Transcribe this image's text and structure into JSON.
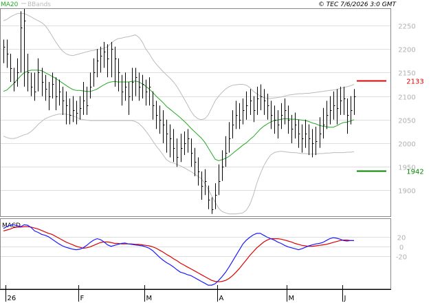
{
  "header": {
    "legend_main": "MA20",
    "legend_bands": "BBands",
    "stamp": "© TEC 7/6/2026 3:0 GMT"
  },
  "colors": {
    "price_bars": "#000000",
    "ma20": "#22aa22",
    "bbands": "#bbbbbb",
    "resistance": "#dd0000",
    "support": "#008800",
    "macd_line": "#1a1aff",
    "signal_line": "#dd0000",
    "grid": "#dddddd",
    "axis_text": "#b0b0b0"
  },
  "chart_data": [
    {
      "type": "ohlc",
      "name": "price",
      "ylim": [
        1845,
        2285
      ],
      "yticks": [
        "2250",
        "2200",
        "2150",
        "2100",
        "2050",
        "2000",
        "1950",
        "1900"
      ],
      "xticks": [
        "26",
        "F",
        "M",
        "A",
        "M",
        "J"
      ],
      "levels": [
        {
          "label": "2133",
          "value": 2133,
          "role": "resistance"
        },
        {
          "label": "1942",
          "value": 1942,
          "role": "support"
        }
      ],
      "close": [
        2205,
        2190,
        2160,
        2130,
        2150,
        2245,
        2260,
        2150,
        2120,
        2110,
        2150,
        2130,
        2115,
        2100,
        2125,
        2100,
        2110,
        2090,
        2080,
        2060,
        2070,
        2065,
        2075,
        2090,
        2080,
        2120,
        2150,
        2175,
        2185,
        2195,
        2180,
        2200,
        2180,
        2150,
        2110,
        2120,
        2100,
        2130,
        2140,
        2120,
        2125,
        2110,
        2120,
        2080,
        2060,
        2050,
        2040,
        2020,
        2010,
        1990,
        1970,
        1990,
        2000,
        2010,
        1980,
        1960,
        1940,
        1910,
        1920,
        1880,
        1860,
        1890,
        1920,
        1950,
        1980,
        2010,
        2040,
        2060,
        2050,
        2070,
        2080,
        2090,
        2070,
        2095,
        2100,
        2090,
        2080,
        2060,
        2050,
        2040,
        2060,
        2070,
        2050,
        2030,
        2040,
        2020,
        2010,
        2020,
        2010,
        2000,
        2005,
        2020,
        2040,
        2060,
        2070,
        2080,
        2075,
        2090,
        2095,
        2060,
        2070,
        2100
      ],
      "high": [
        2220,
        2220,
        2190,
        2160,
        2180,
        2280,
        2285,
        2190,
        2150,
        2150,
        2180,
        2160,
        2145,
        2130,
        2150,
        2140,
        2135,
        2120,
        2110,
        2095,
        2100,
        2090,
        2100,
        2130,
        2120,
        2150,
        2180,
        2200,
        2205,
        2215,
        2210,
        2215,
        2205,
        2180,
        2145,
        2150,
        2130,
        2160,
        2160,
        2150,
        2145,
        2135,
        2140,
        2110,
        2090,
        2080,
        2070,
        2050,
        2040,
        2030,
        2010,
        2020,
        2025,
        2030,
        2010,
        1990,
        1970,
        1940,
        1945,
        1910,
        1885,
        1915,
        1955,
        1985,
        2015,
        2045,
        2070,
        2090,
        2085,
        2095,
        2110,
        2115,
        2100,
        2120,
        2125,
        2115,
        2105,
        2090,
        2080,
        2070,
        2085,
        2095,
        2080,
        2060,
        2065,
        2050,
        2040,
        2050,
        2040,
        2030,
        2035,
        2055,
        2075,
        2090,
        2100,
        2110,
        2115,
        2120,
        2120,
        2095,
        2100,
        2115
      ],
      "low": [
        2170,
        2160,
        2130,
        2110,
        2120,
        2150,
        2120,
        2110,
        2100,
        2090,
        2110,
        2100,
        2090,
        2070,
        2095,
        2070,
        2080,
        2060,
        2040,
        2040,
        2045,
        2040,
        2050,
        2060,
        2060,
        2095,
        2120,
        2140,
        2150,
        2160,
        2140,
        2140,
        2120,
        2110,
        2080,
        2090,
        2060,
        2090,
        2100,
        2090,
        2095,
        2080,
        2080,
        2050,
        2030,
        2020,
        2000,
        1980,
        1970,
        1960,
        1950,
        1960,
        1975,
        1980,
        1950,
        1930,
        1910,
        1880,
        1890,
        1860,
        1850,
        1860,
        1890,
        1920,
        1950,
        1980,
        2010,
        2030,
        2030,
        2040,
        2050,
        2060,
        2045,
        2060,
        2070,
        2060,
        2050,
        2030,
        2020,
        2010,
        2030,
        2040,
        2020,
        2000,
        2010,
        1990,
        1980,
        1990,
        1975,
        1970,
        1975,
        1990,
        2010,
        2030,
        2040,
        2050,
        2040,
        2060,
        2060,
        2020,
        2040,
        2060
      ],
      "ma20": [
        2110,
        2113,
        2120,
        2127,
        2135,
        2143,
        2150,
        2153,
        2155,
        2155,
        2155,
        2154,
        2150,
        2146,
        2142,
        2138,
        2133,
        2128,
        2123,
        2118,
        2114,
        2112,
        2112,
        2111,
        2110,
        2110,
        2112,
        2115,
        2120,
        2124,
        2128,
        2130,
        2131,
        2130,
        2130,
        2130,
        2130,
        2131,
        2132,
        2130,
        2126,
        2121,
        2115,
        2108,
        2100,
        2093,
        2086,
        2078,
        2072,
        2066,
        2060,
        2054,
        2047,
        2040,
        2032,
        2025,
        2018,
        2011,
        2002,
        1990,
        1978,
        1966,
        1963,
        1965,
        1968,
        1972,
        1978,
        1984,
        1990,
        1996,
        2001,
        2008,
        2014,
        2022,
        2030,
        2036,
        2041,
        2045,
        2048,
        2049,
        2051,
        2052,
        2052,
        2051,
        2051,
        2050,
        2049,
        2048,
        2046,
        2043,
        2041,
        2038,
        2036,
        2035,
        2034,
        2034,
        2037,
        2041,
        2044,
        2045,
        2047,
        2050
      ],
      "bb_upper": [
        2260,
        2263,
        2268,
        2272,
        2275,
        2276,
        2275,
        2272,
        2268,
        2264,
        2260,
        2256,
        2250,
        2240,
        2228,
        2216,
        2205,
        2196,
        2190,
        2187,
        2186,
        2188,
        2190,
        2192,
        2194,
        2196,
        2197,
        2199,
        2200,
        2202,
        2205,
        2212,
        2218,
        2222,
        2223,
        2225,
        2226,
        2228,
        2230,
        2225,
        2215,
        2200,
        2190,
        2178,
        2168,
        2160,
        2152,
        2145,
        2138,
        2130,
        2120,
        2108,
        2095,
        2082,
        2068,
        2058,
        2052,
        2050,
        2052,
        2060,
        2075,
        2090,
        2100,
        2108,
        2115,
        2120,
        2123,
        2124,
        2125,
        2125,
        2123,
        2118,
        2110,
        2105,
        2100,
        2097,
        2095,
        2095,
        2096,
        2097,
        2098,
        2100,
        2102,
        2103,
        2104,
        2105,
        2105,
        2106,
        2106,
        2107,
        2108,
        2109,
        2110,
        2111,
        2112,
        2113,
        2114,
        2116,
        2118,
        2120,
        2122,
        2125
      ],
      "bb_lower": [
        2015,
        2012,
        2010,
        2010,
        2012,
        2015,
        2018,
        2020,
        2025,
        2032,
        2040,
        2046,
        2052,
        2055,
        2058,
        2060,
        2062,
        2062,
        2062,
        2060,
        2058,
        2055,
        2052,
        2050,
        2049,
        2048,
        2048,
        2048,
        2048,
        2048,
        2048,
        2048,
        2048,
        2048,
        2048,
        2048,
        2048,
        2048,
        2046,
        2042,
        2035,
        2026,
        2016,
        2005,
        1994,
        1985,
        1975,
        1965,
        1960,
        1958,
        1955,
        1952,
        1948,
        1944,
        1940,
        1935,
        1930,
        1925,
        1915,
        1902,
        1888,
        1875,
        1862,
        1855,
        1852,
        1850,
        1850,
        1850,
        1851,
        1852,
        1858,
        1870,
        1890,
        1915,
        1935,
        1952,
        1965,
        1975,
        1980,
        1982,
        1983,
        1982,
        1981,
        1980,
        1980,
        1979,
        1978,
        1978,
        1977,
        1977,
        1977,
        1978,
        1978,
        1979,
        1979,
        1980,
        1980,
        1980,
        1980,
        1981,
        1981,
        1982
      ]
    },
    {
      "type": "line",
      "name": "MACD",
      "title": "MACD",
      "ylim": [
        -87,
        58
      ],
      "yticks": [
        "20",
        "0",
        "-20"
      ],
      "macd": [
        38,
        42,
        45,
        46,
        44,
        42,
        46,
        45,
        40,
        33,
        30,
        26,
        24,
        21,
        16,
        11,
        6,
        2,
        -1,
        -3,
        -5,
        -6,
        -5,
        -2,
        3,
        9,
        14,
        17,
        15,
        10,
        4,
        1,
        3,
        5,
        7,
        8,
        6,
        5,
        4,
        3,
        2,
        0,
        -3,
        -8,
        -15,
        -22,
        -28,
        -33,
        -37,
        -42,
        -48,
        -53,
        -55,
        -58,
        -60,
        -64,
        -68,
        -72,
        -76,
        -80,
        -80,
        -77,
        -70,
        -62,
        -53,
        -42,
        -30,
        -18,
        -6,
        6,
        14,
        20,
        25,
        28,
        28,
        24,
        20,
        17,
        14,
        10,
        7,
        3,
        0,
        -2,
        -4,
        -6,
        -4,
        -1,
        2,
        4,
        6,
        7,
        9,
        13,
        17,
        19,
        18,
        16,
        13,
        12,
        13,
        13
      ],
      "signal": [
        33,
        35,
        37,
        40,
        41,
        41,
        42,
        42,
        41,
        39,
        37,
        34,
        31,
        28,
        26,
        22,
        18,
        14,
        10,
        7,
        4,
        1,
        -1,
        -3,
        -2,
        0,
        3,
        6,
        9,
        10,
        10,
        9,
        7,
        7,
        6,
        6,
        6,
        6,
        5,
        5,
        4,
        3,
        2,
        0,
        -3,
        -7,
        -11,
        -16,
        -20,
        -25,
        -29,
        -34,
        -38,
        -42,
        -46,
        -50,
        -54,
        -58,
        -62,
        -66,
        -70,
        -72,
        -73,
        -72,
        -70,
        -66,
        -60,
        -53,
        -45,
        -36,
        -27,
        -18,
        -10,
        -2,
        4,
        10,
        14,
        17,
        17,
        17,
        16,
        14,
        12,
        10,
        7,
        5,
        3,
        2,
        1,
        1,
        2,
        3,
        4,
        5,
        7,
        9,
        11,
        13,
        14,
        14,
        13,
        13
      ]
    }
  ]
}
